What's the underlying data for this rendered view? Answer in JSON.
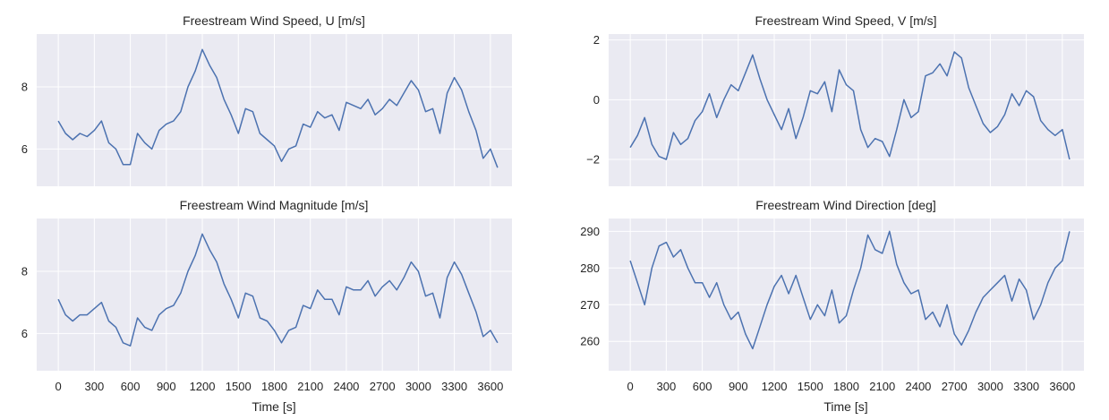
{
  "colors": {
    "background": "#eaeaf2",
    "grid": "#ffffff",
    "line": "#4c72b0",
    "text": "#262626"
  },
  "chart_data": [
    {
      "id": "u",
      "type": "line",
      "title": "Freestream Wind Speed, U [m/s]",
      "xlabel": "",
      "xlim": [
        -180,
        3780
      ],
      "ylim": [
        4.8,
        9.7
      ],
      "yticks": [
        6,
        8
      ],
      "xticks": [
        0,
        300,
        600,
        900,
        1200,
        1500,
        1800,
        2100,
        2400,
        2700,
        3000,
        3300,
        3600
      ],
      "show_xticklabels": false,
      "grid": true,
      "series": [
        {
          "x": [
            0,
            60,
            120,
            180,
            240,
            300,
            360,
            420,
            480,
            540,
            600,
            660,
            720,
            780,
            840,
            900,
            960,
            1020,
            1080,
            1140,
            1200,
            1260,
            1320,
            1380,
            1440,
            1500,
            1560,
            1620,
            1680,
            1740,
            1800,
            1860,
            1920,
            1980,
            2040,
            2100,
            2160,
            2220,
            2280,
            2340,
            2400,
            2460,
            2520,
            2580,
            2640,
            2700,
            2760,
            2820,
            2880,
            2940,
            3000,
            3060,
            3120,
            3180,
            3240,
            3300,
            3360,
            3420,
            3480,
            3540,
            3600,
            3660
          ],
          "y": [
            6.9,
            6.5,
            6.3,
            6.5,
            6.4,
            6.6,
            6.9,
            6.2,
            6.0,
            5.5,
            5.5,
            6.5,
            6.2,
            6.0,
            6.6,
            6.8,
            6.9,
            7.2,
            8.0,
            8.5,
            9.2,
            8.7,
            8.3,
            7.6,
            7.1,
            6.5,
            7.3,
            7.2,
            6.5,
            6.3,
            6.1,
            5.6,
            6.0,
            6.1,
            6.8,
            6.7,
            7.2,
            7.0,
            7.1,
            6.6,
            7.5,
            7.4,
            7.3,
            7.6,
            7.1,
            7.3,
            7.6,
            7.4,
            7.8,
            8.2,
            7.9,
            7.2,
            7.3,
            6.5,
            7.8,
            8.3,
            7.9,
            7.2,
            6.6,
            5.7,
            6.0,
            5.4
          ]
        }
      ]
    },
    {
      "id": "v",
      "type": "line",
      "title": "Freestream Wind Speed, V [m/s]",
      "xlabel": "",
      "xlim": [
        -180,
        3780
      ],
      "ylim": [
        -2.9,
        2.2
      ],
      "yticks": [
        -2,
        0,
        2
      ],
      "xticks": [
        0,
        300,
        600,
        900,
        1200,
        1500,
        1800,
        2100,
        2400,
        2700,
        3000,
        3300,
        3600
      ],
      "show_xticklabels": false,
      "grid": true,
      "series": [
        {
          "x": [
            0,
            60,
            120,
            180,
            240,
            300,
            360,
            420,
            480,
            540,
            600,
            660,
            720,
            780,
            840,
            900,
            960,
            1020,
            1080,
            1140,
            1200,
            1260,
            1320,
            1380,
            1440,
            1500,
            1560,
            1620,
            1680,
            1740,
            1800,
            1860,
            1920,
            1980,
            2040,
            2100,
            2160,
            2220,
            2280,
            2340,
            2400,
            2460,
            2520,
            2580,
            2640,
            2700,
            2760,
            2820,
            2880,
            2940,
            3000,
            3060,
            3120,
            3180,
            3240,
            3300,
            3360,
            3420,
            3480,
            3540,
            3600,
            3660
          ],
          "y": [
            -1.6,
            -1.2,
            -0.6,
            -1.5,
            -1.9,
            -2.0,
            -1.1,
            -1.5,
            -1.3,
            -0.7,
            -0.4,
            0.2,
            -0.6,
            0.0,
            0.5,
            0.3,
            0.9,
            1.5,
            0.7,
            0.0,
            -0.5,
            -1.0,
            -0.3,
            -1.3,
            -0.6,
            0.3,
            0.2,
            0.6,
            -0.4,
            1.0,
            0.5,
            0.3,
            -1.0,
            -1.6,
            -1.3,
            -1.4,
            -1.9,
            -1.0,
            0.0,
            -0.6,
            -0.4,
            0.8,
            0.9,
            1.2,
            0.8,
            1.6,
            1.4,
            0.4,
            -0.2,
            -0.8,
            -1.1,
            -0.9,
            -0.5,
            0.2,
            -0.2,
            0.3,
            0.1,
            -0.7,
            -1.0,
            -1.2,
            -1.0,
            -2.0
          ]
        }
      ]
    },
    {
      "id": "mag",
      "type": "line",
      "title": "Freestream Wind Magnitude [m/s]",
      "xlabel": "Time [s]",
      "xlim": [
        -180,
        3780
      ],
      "ylim": [
        4.8,
        9.7
      ],
      "yticks": [
        6,
        8
      ],
      "xticks": [
        0,
        300,
        600,
        900,
        1200,
        1500,
        1800,
        2100,
        2400,
        2700,
        3000,
        3300,
        3600
      ],
      "show_xticklabels": true,
      "grid": true,
      "series": [
        {
          "x": [
            0,
            60,
            120,
            180,
            240,
            300,
            360,
            420,
            480,
            540,
            600,
            660,
            720,
            780,
            840,
            900,
            960,
            1020,
            1080,
            1140,
            1200,
            1260,
            1320,
            1380,
            1440,
            1500,
            1560,
            1620,
            1680,
            1740,
            1800,
            1860,
            1920,
            1980,
            2040,
            2100,
            2160,
            2220,
            2280,
            2340,
            2400,
            2460,
            2520,
            2580,
            2640,
            2700,
            2760,
            2820,
            2880,
            2940,
            3000,
            3060,
            3120,
            3180,
            3240,
            3300,
            3360,
            3420,
            3480,
            3540,
            3600,
            3660
          ],
          "y": [
            7.1,
            6.6,
            6.4,
            6.6,
            6.6,
            6.8,
            7.0,
            6.4,
            6.2,
            5.7,
            5.6,
            6.5,
            6.2,
            6.1,
            6.6,
            6.8,
            6.9,
            7.3,
            8.0,
            8.5,
            9.2,
            8.7,
            8.3,
            7.6,
            7.1,
            6.5,
            7.3,
            7.2,
            6.5,
            6.4,
            6.1,
            5.7,
            6.1,
            6.2,
            6.9,
            6.8,
            7.4,
            7.1,
            7.1,
            6.6,
            7.5,
            7.4,
            7.4,
            7.7,
            7.2,
            7.5,
            7.7,
            7.4,
            7.8,
            8.3,
            8.0,
            7.2,
            7.3,
            6.5,
            7.8,
            8.3,
            7.9,
            7.3,
            6.7,
            5.9,
            6.1,
            5.7
          ]
        }
      ]
    },
    {
      "id": "dir",
      "type": "line",
      "title": "Freestream Wind Direction [deg]",
      "xlabel": "Time [s]",
      "xlim": [
        -180,
        3780
      ],
      "ylim": [
        252,
        293.5
      ],
      "yticks": [
        260,
        270,
        280,
        290
      ],
      "xticks": [
        0,
        300,
        600,
        900,
        1200,
        1500,
        1800,
        2100,
        2400,
        2700,
        3000,
        3300,
        3600
      ],
      "show_xticklabels": true,
      "grid": true,
      "series": [
        {
          "x": [
            0,
            60,
            120,
            180,
            240,
            300,
            360,
            420,
            480,
            540,
            600,
            660,
            720,
            780,
            840,
            900,
            960,
            1020,
            1080,
            1140,
            1200,
            1260,
            1320,
            1380,
            1440,
            1500,
            1560,
            1620,
            1680,
            1740,
            1800,
            1860,
            1920,
            1980,
            2040,
            2100,
            2160,
            2220,
            2280,
            2340,
            2400,
            2460,
            2520,
            2580,
            2640,
            2700,
            2760,
            2820,
            2880,
            2940,
            3000,
            3060,
            3120,
            3180,
            3240,
            3300,
            3360,
            3420,
            3480,
            3540,
            3600,
            3660
          ],
          "y": [
            282,
            276,
            270,
            280,
            286,
            287,
            283,
            285,
            280,
            276,
            276,
            272,
            276,
            270,
            266,
            268,
            262,
            258,
            264,
            270,
            275,
            278,
            273,
            278,
            272,
            266,
            270,
            267,
            274,
            265,
            267,
            274,
            280,
            289,
            285,
            284,
            290,
            281,
            276,
            273,
            274,
            266,
            268,
            264,
            270,
            262,
            259,
            263,
            268,
            272,
            274,
            276,
            278,
            271,
            277,
            274,
            266,
            270,
            276,
            280,
            282,
            290
          ]
        }
      ]
    }
  ]
}
